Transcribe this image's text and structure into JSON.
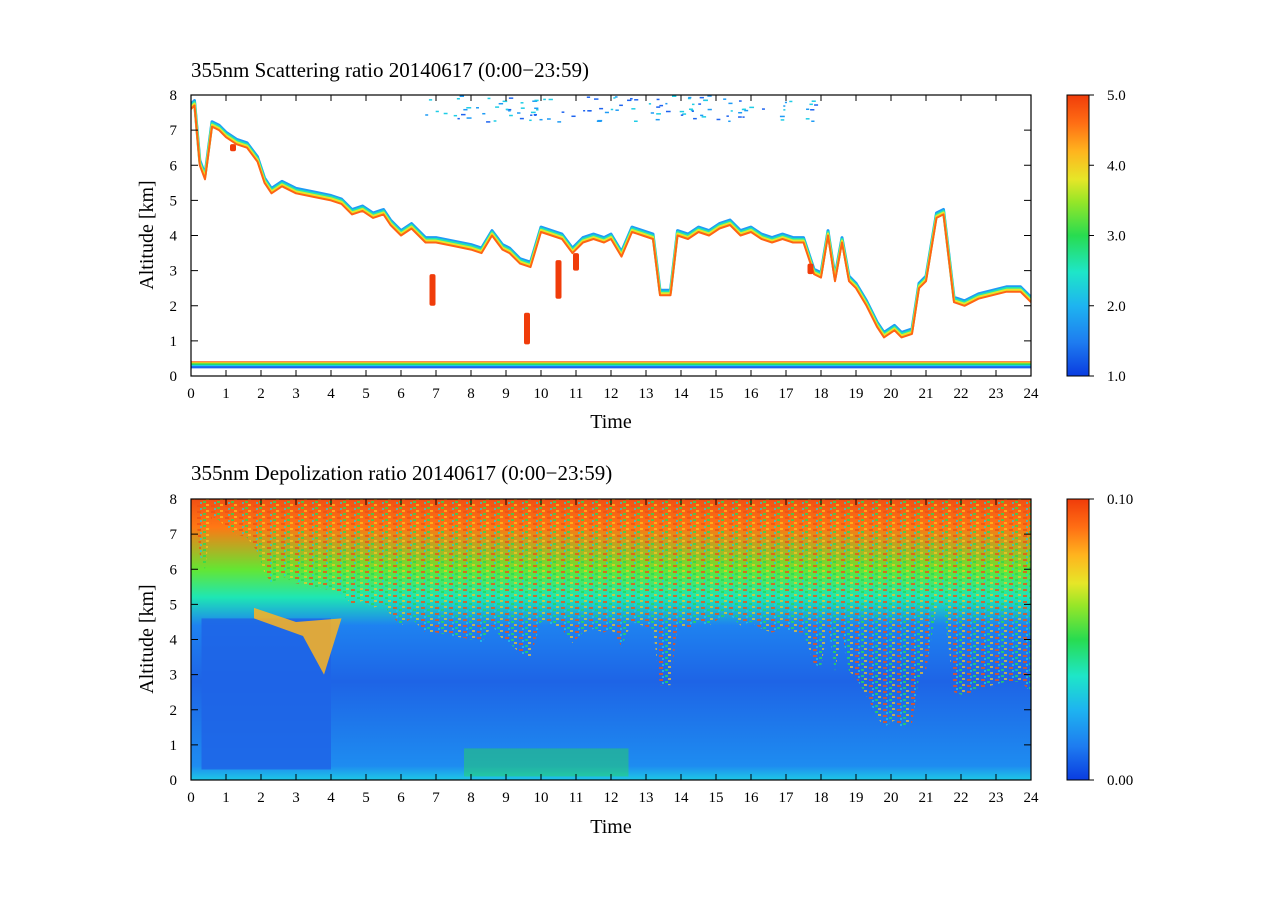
{
  "chart_data": [
    {
      "type": "heatmap",
      "title": "355nm Scattering ratio  20140617 (0:00−23:59)",
      "xlabel": "Time",
      "ylabel": "Altitude [km]",
      "xlim": [
        0,
        24
      ],
      "ylim": [
        0,
        8
      ],
      "xticks": [
        "0",
        "1",
        "2",
        "3",
        "4",
        "5",
        "6",
        "7",
        "8",
        "9",
        "10",
        "11",
        "12",
        "13",
        "14",
        "15",
        "16",
        "17",
        "18",
        "19",
        "20",
        "21",
        "22",
        "23",
        "24"
      ],
      "yticks": [
        "0",
        "1",
        "2",
        "3",
        "4",
        "5",
        "6",
        "7",
        "8"
      ],
      "colorbar": {
        "min": 1.0,
        "max": 5.0,
        "ticks": [
          "1.0",
          "2.0",
          "3.0",
          "4.0",
          "5.0"
        ]
      },
      "cloud_base_km": [
        [
          0.0,
          7.6
        ],
        [
          0.1,
          7.7
        ],
        [
          0.25,
          6.0
        ],
        [
          0.4,
          5.6
        ],
        [
          0.6,
          7.1
        ],
        [
          0.8,
          7.0
        ],
        [
          1.0,
          6.8
        ],
        [
          1.3,
          6.6
        ],
        [
          1.6,
          6.5
        ],
        [
          1.9,
          6.1
        ],
        [
          2.1,
          5.5
        ],
        [
          2.3,
          5.2
        ],
        [
          2.6,
          5.4
        ],
        [
          3.0,
          5.2
        ],
        [
          3.5,
          5.1
        ],
        [
          4.0,
          5.0
        ],
        [
          4.3,
          4.9
        ],
        [
          4.6,
          4.6
        ],
        [
          4.9,
          4.7
        ],
        [
          5.2,
          4.5
        ],
        [
          5.5,
          4.6
        ],
        [
          5.7,
          4.3
        ],
        [
          6.0,
          4.0
        ],
        [
          6.3,
          4.2
        ],
        [
          6.7,
          3.8
        ],
        [
          7.0,
          3.8
        ],
        [
          7.5,
          3.7
        ],
        [
          8.0,
          3.6
        ],
        [
          8.3,
          3.5
        ],
        [
          8.6,
          4.0
        ],
        [
          8.9,
          3.6
        ],
        [
          9.1,
          3.5
        ],
        [
          9.4,
          3.2
        ],
        [
          9.7,
          3.1
        ],
        [
          10.0,
          4.1
        ],
        [
          10.3,
          4.0
        ],
        [
          10.6,
          3.9
        ],
        [
          10.9,
          3.5
        ],
        [
          11.2,
          3.8
        ],
        [
          11.5,
          3.9
        ],
        [
          11.8,
          3.8
        ],
        [
          12.0,
          3.9
        ],
        [
          12.3,
          3.4
        ],
        [
          12.6,
          4.1
        ],
        [
          12.9,
          4.0
        ],
        [
          13.2,
          3.9
        ],
        [
          13.4,
          2.3
        ],
        [
          13.7,
          2.3
        ],
        [
          13.9,
          4.0
        ],
        [
          14.2,
          3.9
        ],
        [
          14.5,
          4.1
        ],
        [
          14.8,
          4.0
        ],
        [
          15.1,
          4.2
        ],
        [
          15.4,
          4.3
        ],
        [
          15.7,
          4.0
        ],
        [
          16.0,
          4.1
        ],
        [
          16.3,
          3.9
        ],
        [
          16.6,
          3.8
        ],
        [
          16.9,
          3.9
        ],
        [
          17.2,
          3.8
        ],
        [
          17.5,
          3.8
        ],
        [
          17.8,
          2.9
        ],
        [
          18.0,
          2.8
        ],
        [
          18.2,
          4.0
        ],
        [
          18.4,
          2.7
        ],
        [
          18.6,
          3.8
        ],
        [
          18.8,
          2.7
        ],
        [
          19.0,
          2.5
        ],
        [
          19.3,
          2.0
        ],
        [
          19.6,
          1.4
        ],
        [
          19.8,
          1.1
        ],
        [
          20.1,
          1.3
        ],
        [
          20.3,
          1.1
        ],
        [
          20.6,
          1.2
        ],
        [
          20.8,
          2.5
        ],
        [
          21.0,
          2.7
        ],
        [
          21.3,
          4.5
        ],
        [
          21.5,
          4.6
        ],
        [
          21.8,
          2.1
        ],
        [
          22.1,
          2.0
        ],
        [
          22.5,
          2.2
        ],
        [
          22.9,
          2.3
        ],
        [
          23.3,
          2.4
        ],
        [
          23.7,
          2.4
        ],
        [
          24.0,
          2.1
        ]
      ]
    },
    {
      "type": "heatmap",
      "title": "355nm Depolization ratio  20140617 (0:00−23:59)",
      "xlabel": "Time",
      "ylabel": "Altitude [km]",
      "xlim": [
        0,
        24
      ],
      "ylim": [
        0,
        8
      ],
      "xticks": [
        "0",
        "1",
        "2",
        "3",
        "4",
        "5",
        "6",
        "7",
        "8",
        "9",
        "10",
        "11",
        "12",
        "13",
        "14",
        "15",
        "16",
        "17",
        "18",
        "19",
        "20",
        "21",
        "22",
        "23",
        "24"
      ],
      "yticks": [
        "0",
        "1",
        "2",
        "3",
        "4",
        "5",
        "6",
        "7",
        "8"
      ],
      "colorbar": {
        "min": 0.0,
        "max": 0.1,
        "ticks": [
          "0.00",
          "0.10"
        ]
      }
    }
  ],
  "colors": {
    "scale": [
      "#0a3ce0",
      "#1e64f0",
      "#1e9bf5",
      "#1ecde6",
      "#1ee6b4",
      "#28dc50",
      "#82e628",
      "#e6e628",
      "#ffc81e",
      "#ff9614",
      "#ff6414",
      "#f03c0a"
    ]
  }
}
